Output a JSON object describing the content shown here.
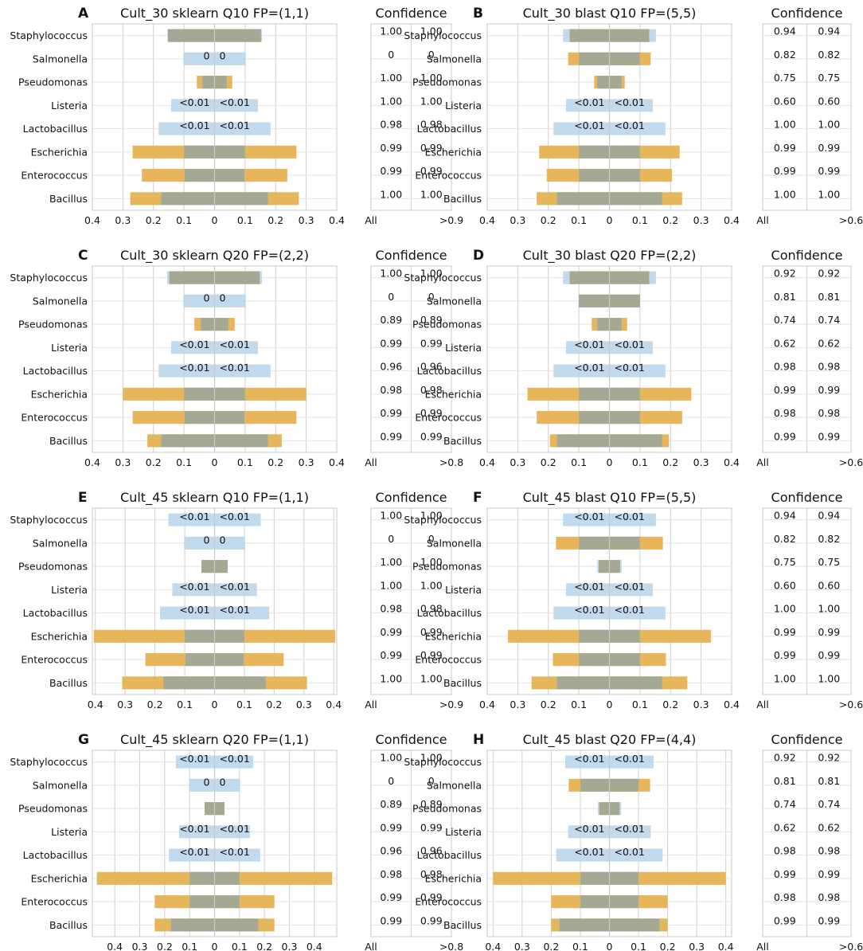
{
  "figure": {
    "categories": [
      "Staphylococcus",
      "Salmonella",
      "Pseudomonas",
      "Listeria",
      "Lactobacillus",
      "Escherichia",
      "Enterococcus",
      "Bacillus"
    ],
    "colors": {
      "gold": "#e8b65a",
      "blue": "#b9d5ea",
      "gray": "#a5a893",
      "grid": "#d0d0d0",
      "frame": "#c8c8c8"
    }
  },
  "chart_data": [
    {
      "id": "A",
      "letter": "A",
      "type": "bar",
      "title": "Cult_30 sklearn Q10 FP=(1,1)",
      "xlim": [
        -0.4,
        0.4
      ],
      "xticks": [
        -0.4,
        -0.3,
        -0.2,
        -0.1,
        0,
        0.1,
        0.2,
        0.3,
        0.4
      ],
      "xtick_labels": [
        "0.4",
        "0.3",
        "0.2",
        "0.1",
        "0",
        "0.1",
        "0.2",
        "0.3",
        "0.4"
      ],
      "bars": [
        {
          "gold": 0.152,
          "blue": 0.155,
          "gray": 0.152,
          "label": ""
        },
        {
          "gold": 0,
          "blue": 0.102,
          "gray": 0,
          "label": "0"
        },
        {
          "gold": 0.058,
          "blue": 0.04,
          "gray": 0.04,
          "label": ""
        },
        {
          "gold": 0,
          "blue": 0.142,
          "gray": 0,
          "label": "<0.01"
        },
        {
          "gold": 0,
          "blue": 0.183,
          "gray": 0,
          "label": "<0.01"
        },
        {
          "gold": 0.268,
          "blue": 0.1,
          "gray": 0.1,
          "label": ""
        },
        {
          "gold": 0.238,
          "blue": 0.098,
          "gray": 0.098,
          "label": ""
        },
        {
          "gold": 0.276,
          "blue": 0.175,
          "gray": 0.175,
          "label": ""
        }
      ],
      "confidence": {
        "title": "Confidence",
        "all": [
          "1.00",
          "0",
          "1.00",
          "1.00",
          "0.98",
          "0.99",
          "0.99",
          "1.00"
        ],
        "high": [
          "1.00",
          "0",
          "1.00",
          "1.00",
          "0.98",
          "0.99",
          "0.99",
          "1.00"
        ],
        "xlabel_left": "All",
        "xlabel_right": ">0.9"
      }
    },
    {
      "id": "B",
      "letter": "B",
      "type": "bar",
      "title": "Cult_30 blast Q10 FP=(5,5)",
      "xlim": [
        -0.4,
        0.4
      ],
      "xticks": [
        -0.4,
        -0.3,
        -0.2,
        -0.1,
        0,
        0.1,
        0.2,
        0.3,
        0.4
      ],
      "xtick_labels": [
        "0.4",
        "0.3",
        "0.2",
        "0.1",
        "0",
        "0.1",
        "0.2",
        "0.3",
        "0.4"
      ],
      "bars": [
        {
          "gold": 0.13,
          "blue": 0.152,
          "gray": 0.13,
          "label": ""
        },
        {
          "gold": 0.135,
          "blue": 0.1,
          "gray": 0.1,
          "label": ""
        },
        {
          "gold": 0.05,
          "blue": 0.04,
          "gray": 0.04,
          "label": ""
        },
        {
          "gold": 0,
          "blue": 0.142,
          "gray": 0,
          "label": "<0.01"
        },
        {
          "gold": 0,
          "blue": 0.183,
          "gray": 0,
          "label": "<0.01"
        },
        {
          "gold": 0.23,
          "blue": 0.1,
          "gray": 0.1,
          "label": ""
        },
        {
          "gold": 0.205,
          "blue": 0.1,
          "gray": 0.1,
          "label": ""
        },
        {
          "gold": 0.238,
          "blue": 0.172,
          "gray": 0.172,
          "label": ""
        }
      ],
      "confidence": {
        "title": "Confidence",
        "all": [
          "0.94",
          "0.82",
          "0.75",
          "0.60",
          "1.00",
          "0.99",
          "0.99",
          "1.00"
        ],
        "high": [
          "0.94",
          "0.82",
          "0.75",
          "0.60",
          "1.00",
          "0.99",
          "0.99",
          "1.00"
        ],
        "xlabel_left": "All",
        "xlabel_right": ">0.6"
      }
    },
    {
      "id": "C",
      "letter": "C",
      "type": "bar",
      "title": "Cult_30 sklearn Q20 FP=(2,2)",
      "xlim": [
        -0.4,
        0.4
      ],
      "xticks": [
        -0.4,
        -0.3,
        -0.2,
        -0.1,
        0,
        0.1,
        0.2,
        0.3,
        0.4
      ],
      "xtick_labels": [
        "0.4",
        "0.3",
        "0.2",
        "0.1",
        "0",
        "0.1",
        "0.2",
        "0.3",
        "0.4"
      ],
      "bars": [
        {
          "gold": 0.148,
          "blue": 0.155,
          "gray": 0.148,
          "label": ""
        },
        {
          "gold": 0,
          "blue": 0.102,
          "gray": 0,
          "label": "0"
        },
        {
          "gold": 0.066,
          "blue": 0.045,
          "gray": 0.045,
          "label": ""
        },
        {
          "gold": 0,
          "blue": 0.142,
          "gray": 0,
          "label": "<0.01"
        },
        {
          "gold": 0,
          "blue": 0.183,
          "gray": 0,
          "label": "<0.01"
        },
        {
          "gold": 0.3,
          "blue": 0.1,
          "gray": 0.1,
          "label": ""
        },
        {
          "gold": 0.268,
          "blue": 0.098,
          "gray": 0.098,
          "label": ""
        },
        {
          "gold": 0.22,
          "blue": 0.175,
          "gray": 0.175,
          "label": ""
        }
      ],
      "confidence": {
        "title": "Confidence",
        "all": [
          "1.00",
          "0",
          "0.89",
          "0.99",
          "0.96",
          "0.98",
          "0.99",
          "0.99"
        ],
        "high": [
          "1.00",
          "0",
          "0.89",
          "0.99",
          "0.96",
          "0.98",
          "0.99",
          "0.99"
        ],
        "xlabel_left": "All",
        "xlabel_right": ">0.8"
      }
    },
    {
      "id": "D",
      "letter": "D",
      "type": "bar",
      "title": "Cult_30 blast Q20 FP=(2,2)",
      "xlim": [
        -0.4,
        0.4
      ],
      "xticks": [
        -0.4,
        -0.3,
        -0.2,
        -0.1,
        0,
        0.1,
        0.2,
        0.3,
        0.4
      ],
      "xtick_labels": [
        "0.4",
        "0.3",
        "0.2",
        "0.1",
        "0",
        "0.1",
        "0.2",
        "0.3",
        "0.4"
      ],
      "bars": [
        {
          "gold": 0.13,
          "blue": 0.152,
          "gray": 0.13,
          "label": ""
        },
        {
          "gold": 0.1,
          "blue": 0.1,
          "gray": 0.1,
          "label": ""
        },
        {
          "gold": 0.058,
          "blue": 0.04,
          "gray": 0.04,
          "label": ""
        },
        {
          "gold": 0,
          "blue": 0.142,
          "gray": 0,
          "label": "<0.01"
        },
        {
          "gold": 0,
          "blue": 0.183,
          "gray": 0,
          "label": "<0.01"
        },
        {
          "gold": 0.268,
          "blue": 0.1,
          "gray": 0.1,
          "label": ""
        },
        {
          "gold": 0.238,
          "blue": 0.1,
          "gray": 0.1,
          "label": ""
        },
        {
          "gold": 0.195,
          "blue": 0.172,
          "gray": 0.172,
          "label": ""
        }
      ],
      "confidence": {
        "title": "Confidence",
        "all": [
          "0.92",
          "0.81",
          "0.74",
          "0.62",
          "0.98",
          "0.99",
          "0.98",
          "0.99"
        ],
        "high": [
          "0.92",
          "0.81",
          "0.74",
          "0.62",
          "0.98",
          "0.99",
          "0.98",
          "0.99"
        ],
        "xlabel_left": "All",
        "xlabel_right": ">0.6"
      }
    },
    {
      "id": "E",
      "letter": "E",
      "type": "bar",
      "title": "Cult_45 sklearn Q10 FP=(1,1)",
      "xlim": [
        -0.41,
        0.41
      ],
      "xticks": [
        -0.4,
        -0.3,
        -0.2,
        -0.1,
        0,
        0.1,
        0.2,
        0.3,
        0.4
      ],
      "xtick_labels": [
        "0.4",
        "0.3",
        "0.2",
        "0.1",
        "0",
        "0.1",
        "0.2",
        "0.3",
        "0.4"
      ],
      "bars": [
        {
          "gold": 0,
          "blue": 0.155,
          "gray": 0,
          "label": "<0.01"
        },
        {
          "gold": 0,
          "blue": 0.102,
          "gray": 0,
          "label": "0"
        },
        {
          "gold": 0.044,
          "blue": 0.044,
          "gray": 0.044,
          "label": ""
        },
        {
          "gold": 0,
          "blue": 0.142,
          "gray": 0,
          "label": "<0.01"
        },
        {
          "gold": 0,
          "blue": 0.183,
          "gray": 0,
          "label": "<0.01"
        },
        {
          "gold": 0.405,
          "blue": 0.1,
          "gray": 0.1,
          "label": ""
        },
        {
          "gold": 0.232,
          "blue": 0.098,
          "gray": 0.098,
          "label": ""
        },
        {
          "gold": 0.31,
          "blue": 0.172,
          "gray": 0.172,
          "label": ""
        }
      ],
      "confidence": {
        "title": "Confidence",
        "all": [
          "1.00",
          "0",
          "1.00",
          "1.00",
          "0.98",
          "0.99",
          "0.99",
          "1.00"
        ],
        "high": [
          "1.00",
          "0",
          "1.00",
          "1.00",
          "0.98",
          "0.99",
          "0.99",
          "1.00"
        ],
        "xlabel_left": "All",
        "xlabel_right": ">0.9"
      }
    },
    {
      "id": "F",
      "letter": "F",
      "type": "bar",
      "title": "Cult_45 blast Q10 FP=(5,5)",
      "xlim": [
        -0.4,
        0.4
      ],
      "xticks": [
        -0.4,
        -0.3,
        -0.2,
        -0.1,
        0,
        0.1,
        0.2,
        0.3,
        0.4
      ],
      "xtick_labels": [
        "0.4",
        "0.3",
        "0.2",
        "0.1",
        "0",
        "0.1",
        "0.2",
        "0.3",
        "0.4"
      ],
      "bars": [
        {
          "gold": 0,
          "blue": 0.152,
          "gray": 0,
          "label": "<0.01"
        },
        {
          "gold": 0.175,
          "blue": 0.1,
          "gray": 0.1,
          "label": ""
        },
        {
          "gold": 0.035,
          "blue": 0.04,
          "gray": 0.035,
          "label": ""
        },
        {
          "gold": 0,
          "blue": 0.142,
          "gray": 0,
          "label": "<0.01"
        },
        {
          "gold": 0,
          "blue": 0.183,
          "gray": 0,
          "label": "<0.01"
        },
        {
          "gold": 0.332,
          "blue": 0.1,
          "gray": 0.1,
          "label": ""
        },
        {
          "gold": 0.185,
          "blue": 0.1,
          "gray": 0.1,
          "label": ""
        },
        {
          "gold": 0.255,
          "blue": 0.172,
          "gray": 0.172,
          "label": ""
        }
      ],
      "confidence": {
        "title": "Confidence",
        "all": [
          "0.94",
          "0.82",
          "0.75",
          "0.60",
          "1.00",
          "0.99",
          "0.99",
          "1.00"
        ],
        "high": [
          "0.94",
          "0.82",
          "0.75",
          "0.60",
          "1.00",
          "0.99",
          "0.99",
          "1.00"
        ],
        "xlabel_left": "All",
        "xlabel_right": ">0.6"
      }
    },
    {
      "id": "G",
      "letter": "G",
      "type": "bar",
      "title": "Cult_45 sklearn Q20 FP=(1,1)",
      "xlim": [
        -0.49,
        0.49
      ],
      "xticks": [
        -0.4,
        -0.3,
        -0.2,
        -0.1,
        0,
        0.1,
        0.2,
        0.3,
        0.4
      ],
      "xtick_labels": [
        "0.4",
        "0.3",
        "0.2",
        "0.1",
        "0",
        "0.1",
        "0.2",
        "0.3",
        "0.4"
      ],
      "bars": [
        {
          "gold": 0,
          "blue": 0.155,
          "gray": 0,
          "label": "<0.01"
        },
        {
          "gold": 0,
          "blue": 0.102,
          "gray": 0,
          "label": "0"
        },
        {
          "gold": 0.04,
          "blue": 0.04,
          "gray": 0.04,
          "label": ""
        },
        {
          "gold": 0,
          "blue": 0.142,
          "gray": 0,
          "label": "<0.01"
        },
        {
          "gold": 0,
          "blue": 0.183,
          "gray": 0,
          "label": "<0.01"
        },
        {
          "gold": 0.472,
          "blue": 0.1,
          "gray": 0.1,
          "label": ""
        },
        {
          "gold": 0.24,
          "blue": 0.1,
          "gray": 0.1,
          "label": ""
        },
        {
          "gold": 0.24,
          "blue": 0.175,
          "gray": 0.175,
          "label": ""
        }
      ],
      "confidence": {
        "title": "Confidence",
        "all": [
          "1.00",
          "0",
          "0.89",
          "0.99",
          "0.96",
          "0.98",
          "0.99",
          "0.99"
        ],
        "high": [
          "1.00",
          "0",
          "0.89",
          "0.99",
          "0.96",
          "0.98",
          "0.99",
          "0.99"
        ],
        "xlabel_left": "All",
        "xlabel_right": ">0.8"
      }
    },
    {
      "id": "H",
      "letter": "H",
      "type": "bar",
      "title": "Cult_45 blast Q20 FP=(4,4)",
      "xlim": [
        -0.42,
        0.42
      ],
      "xticks": [
        -0.4,
        -0.3,
        -0.2,
        -0.1,
        0,
        0.1,
        0.2,
        0.3,
        0.4
      ],
      "xtick_labels": [
        "0.4",
        "0.3",
        "0.2",
        "0.1",
        "0",
        "0.1",
        "0.2",
        "0.3",
        "0.4"
      ],
      "bars": [
        {
          "gold": 0,
          "blue": 0.152,
          "gray": 0,
          "label": "<0.01"
        },
        {
          "gold": 0.14,
          "blue": 0.1,
          "gray": 0.1,
          "label": ""
        },
        {
          "gold": 0.035,
          "blue": 0.04,
          "gray": 0.035,
          "label": ""
        },
        {
          "gold": 0,
          "blue": 0.142,
          "gray": 0,
          "label": "<0.01"
        },
        {
          "gold": 0,
          "blue": 0.183,
          "gray": 0,
          "label": "<0.01"
        },
        {
          "gold": 0.4,
          "blue": 0.1,
          "gray": 0.1,
          "label": ""
        },
        {
          "gold": 0.2,
          "blue": 0.1,
          "gray": 0.1,
          "label": ""
        },
        {
          "gold": 0.2,
          "blue": 0.172,
          "gray": 0.172,
          "label": ""
        }
      ],
      "confidence": {
        "title": "Confidence",
        "all": [
          "0.92",
          "0.81",
          "0.74",
          "0.62",
          "0.98",
          "0.99",
          "0.98",
          "0.99"
        ],
        "high": [
          "0.92",
          "0.81",
          "0.74",
          "0.62",
          "0.98",
          "0.99",
          "0.98",
          "0.99"
        ],
        "xlabel_left": "All",
        "xlabel_right": ">0.6"
      }
    }
  ]
}
